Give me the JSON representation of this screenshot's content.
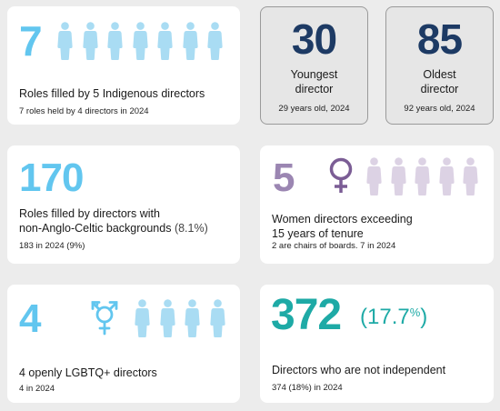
{
  "colors": {
    "light_blue": "#62c6ef",
    "pale_blue": "#a9dcf3",
    "navy": "#1d3a64",
    "teal": "#1eaaa6",
    "purple": "#7b5d95",
    "lavender": "#dcd2e4",
    "lavender_number": "#9b86b2"
  },
  "icons": {
    "person": "person-silhouette-icon",
    "female": "female-symbol-icon",
    "transgender": "transgender-symbol-icon"
  },
  "indigenous": {
    "number": "7",
    "label": "Roles filled by 5 Indigenous directors",
    "sub": "7 roles held by 4 directors in 2024"
  },
  "youngest": {
    "number": "30",
    "label_line1": "Youngest",
    "label_line2": "director",
    "sub": "29 years old, 2024"
  },
  "oldest": {
    "number": "85",
    "label_line1": "Oldest",
    "label_line2": "director",
    "sub": "92 years old, 2024"
  },
  "cultural": {
    "number": "170",
    "label_line1": "Roles filled by directors with",
    "label_line2_main": "non-Anglo-Celtic backgrounds",
    "label_line2_pct": " (8.1%)",
    "sub": "183 in 2024 (9%)"
  },
  "women": {
    "number": "5",
    "label_line1": "Women directors exceeding",
    "label_line2": "15 years of tenure",
    "sub": "2 are chairs of boards. 7 in 2024"
  },
  "lgbtq": {
    "number": "4",
    "label": "4 openly LGBTQ+ directors",
    "sub": "4 in 2024"
  },
  "independent": {
    "number": "372",
    "pct_open": "(",
    "pct_value": "17.7",
    "pct_sign": "%",
    "pct_close": ")",
    "label": "Directors who are not independent",
    "sub": "374 (18%) in 2024"
  }
}
